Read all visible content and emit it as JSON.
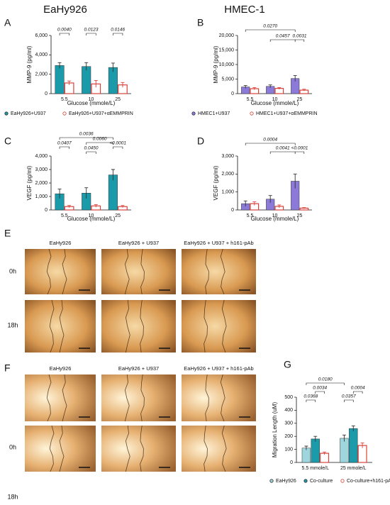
{
  "column_titles": [
    "EaHy926",
    "HMEC-1"
  ],
  "chart_data": [
    {
      "type": "bar",
      "panel": "A",
      "x_label": "Glucose (mmole/L)",
      "y_label": "MMP-9 (pg/ml)",
      "categories": [
        "5.5",
        "10",
        "25"
      ],
      "ylim": [
        0,
        6000
      ],
      "yticks": [
        0,
        {
          "value": 2000,
          "label": "2,000"
        },
        {
          "value": 4000,
          "label": "4,000"
        },
        {
          "value": 6000,
          "label": "6,000"
        }
      ],
      "legend": true,
      "series": [
        {
          "name": "EaHy926+U937",
          "color": "#1b9aaa",
          "style": "filled",
          "values": [
            2900,
            2800,
            2700
          ],
          "errors": [
            300,
            400,
            450
          ]
        },
        {
          "name": "EaHy926+U937+αEMMPRIN",
          "color": "#d9423a",
          "style": "outline",
          "values": [
            1100,
            1000,
            900
          ],
          "errors": [
            200,
            350,
            250
          ]
        }
      ],
      "annotations": [
        "0.0040",
        "0.0123",
        "0.0146"
      ]
    },
    {
      "type": "bar",
      "panel": "B",
      "x_label": "Glucose (mmole/L)",
      "y_label": "MMP-9 (pg/ml)",
      "categories": [
        "5.5",
        "10",
        "25"
      ],
      "ylim": [
        0,
        20000
      ],
      "yticks": [
        0,
        {
          "value": 5000,
          "label": "5,000"
        },
        {
          "value": 10000,
          "label": "10,000"
        },
        {
          "value": 15000,
          "label": "15,000"
        },
        {
          "value": 20000,
          "label": "20,000"
        }
      ],
      "legend": true,
      "series": [
        {
          "name": "HMEC1+U937",
          "color": "#8c7ad9",
          "style": "filled",
          "values": [
            2300,
            2500,
            5200
          ],
          "errors": [
            500,
            500,
            1000
          ]
        },
        {
          "name": "HMEC1+U937+αEMMPRIN",
          "color": "#d9423a",
          "style": "outline",
          "values": [
            1700,
            1800,
            1200
          ],
          "errors": [
            400,
            300,
            300
          ]
        }
      ],
      "annotations": [
        "0.0270",
        "0.0457",
        "0.0031"
      ]
    },
    {
      "type": "bar",
      "panel": "C",
      "x_label": "Glucose (mmole/L)",
      "y_label": "VEGF (pg/ml)",
      "categories": [
        "5.5",
        "10",
        "25"
      ],
      "ylim": [
        0,
        4000
      ],
      "yticks": [
        0,
        {
          "value": 1000,
          "label": "1,000"
        },
        {
          "value": 2000,
          "label": "2,000"
        },
        {
          "value": 3000,
          "label": "3,000"
        },
        {
          "value": 4000,
          "label": "4,000"
        }
      ],
      "legend": false,
      "series": [
        {
          "name": "EaHy926+U937",
          "color": "#1b9aaa",
          "style": "filled",
          "values": [
            1200,
            1250,
            2600
          ],
          "errors": [
            350,
            400,
            400
          ]
        },
        {
          "name": "EaHy926+U937+αEMMPRIN",
          "color": "#d9423a",
          "style": "outline",
          "values": [
            250,
            300,
            250
          ],
          "errors": [
            80,
            100,
            80
          ]
        }
      ],
      "annotations": [
        "0.0036",
        "0.0407",
        "0.0060",
        "0.0450",
        "<0.0001"
      ]
    },
    {
      "type": "bar",
      "panel": "D",
      "x_label": "Glucose (mmole/L)",
      "y_label": "VEGF (pg/ml)",
      "categories": [
        "5.5",
        "10",
        "25"
      ],
      "ylim": [
        0,
        3000
      ],
      "yticks": [
        0,
        {
          "value": 1000,
          "label": "1,000"
        },
        {
          "value": 2000,
          "label": "2,000"
        },
        {
          "value": 3000,
          "label": "3,000"
        }
      ],
      "legend": false,
      "series": [
        {
          "name": "HMEC1+U937",
          "color": "#8c7ad9",
          "style": "filled",
          "values": [
            350,
            600,
            1600
          ],
          "errors": [
            150,
            200,
            400
          ]
        },
        {
          "name": "HMEC1+U937+αEMMPRIN",
          "color": "#d9423a",
          "style": "outline",
          "values": [
            350,
            200,
            100
          ],
          "errors": [
            100,
            80,
            30
          ]
        }
      ],
      "annotations": [
        "0.0004",
        "0.0041",
        "<0.0001"
      ]
    },
    {
      "type": "bar",
      "panel": "G",
      "y_label": "Migration Length (uM)",
      "categories": [
        "5.5 mmole/L",
        "25 mmole/L"
      ],
      "ylim": [
        0,
        500
      ],
      "yticks": [
        0,
        100,
        200,
        300,
        400,
        500
      ],
      "legend": true,
      "series": [
        {
          "name": "EaHy926",
          "color": "#9fd6de",
          "style": "filled",
          "values": [
            110,
            185
          ],
          "errors": [
            15,
            25
          ]
        },
        {
          "name": "Co-culture",
          "color": "#1b9aaa",
          "style": "filled",
          "values": [
            180,
            260
          ],
          "errors": [
            20,
            20
          ]
        },
        {
          "name": "Co-culture+h161-pAb",
          "color": "#d9423a",
          "style": "outline",
          "values": [
            70,
            130
          ],
          "errors": [
            10,
            20
          ]
        }
      ],
      "annotations": [
        "0.0180",
        "0.0034",
        "0.0368",
        "0.0357",
        "0.0004"
      ]
    }
  ],
  "micrographs": [
    {
      "panel": "E",
      "columns": [
        "EaHy926",
        "EaHy926 + U937",
        "EaHy926 + U937 + h161-pAb"
      ],
      "rows": [
        "0h",
        "18h"
      ]
    },
    {
      "panel": "F",
      "columns": [
        "EaHy926",
        "EaHy926 + U937",
        "EaHy926 + U937 + h161-pAb"
      ],
      "rows": [
        "0h",
        "18h"
      ]
    }
  ]
}
